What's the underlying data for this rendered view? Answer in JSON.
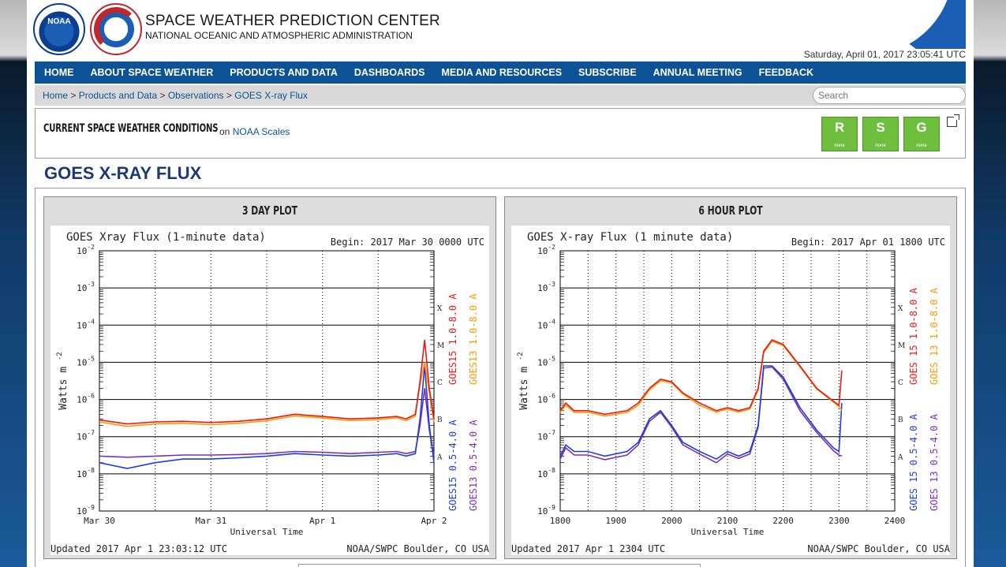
{
  "header": {
    "noaa_logo_text": "NOAA",
    "title": "SPACE WEATHER PREDICTION CENTER",
    "subtitle": "NATIONAL OCEANIC AND ATMOSPHERIC ADMINISTRATION",
    "datetime": "Saturday, April 01, 2017 23:05:41 UTC"
  },
  "nav": {
    "items": [
      "HOME",
      "ABOUT SPACE WEATHER",
      "PRODUCTS AND DATA",
      "DASHBOARDS",
      "MEDIA AND RESOURCES",
      "SUBSCRIBE",
      "ANNUAL MEETING",
      "FEEDBACK"
    ]
  },
  "breadcrumb": {
    "items": [
      "Home",
      "Products and Data",
      "Observations",
      "GOES X-ray Flux"
    ],
    "separator": ">"
  },
  "search": {
    "placeholder": "Search"
  },
  "conditions": {
    "title": "CURRENT SPACE WEATHER CONDITIONS",
    "on_text": "on",
    "link": "NOAA Scales",
    "scales": [
      {
        "letter": "R",
        "status": "none",
        "color": "#6fbf3f"
      },
      {
        "letter": "S",
        "status": "none",
        "color": "#6fbf3f"
      },
      {
        "letter": "G",
        "status": "none",
        "color": "#6fbf3f"
      }
    ]
  },
  "page_title": "GOES X-RAY FLUX",
  "chart_data": [
    {
      "panel_title": "3 DAY PLOT",
      "type": "line",
      "title": "GOES Xray Flux (1-minute data)",
      "begin": "Begin:  2017 Mar 30 0000 UTC",
      "xlabel": "Universal Time",
      "ylabel": "Watts m",
      "ylabel_sup": "-2",
      "yscale": "log",
      "ylim": [
        1e-09,
        0.01
      ],
      "y_ticks": [
        "10",
        "10",
        "10",
        "10",
        "10",
        "10",
        "10",
        "10"
      ],
      "y_tick_exps": [
        "-2",
        "-3",
        "-4",
        "-5",
        "-6",
        "-7",
        "-8",
        "-9"
      ],
      "x_ticks": [
        "Mar 30",
        "Mar 31",
        "Apr 1",
        "Apr 2"
      ],
      "flare_classes": [
        "X",
        "M",
        "C",
        "B",
        "A"
      ],
      "legend": [
        "GOES15 1.0-8.0 A",
        "GOES13 1.0-8.0 A",
        "GOES15 0.5-4.0 A",
        "GOES13 0.5-4.0 A"
      ],
      "colors": [
        "#e41a1c",
        "#ff9900",
        "#1f3ddb",
        "#7b2fb5"
      ],
      "footer_left": "Updated 2017 Apr  1 23:03:12 UTC",
      "footer_right": "NOAA/SWPC Boulder, CO USA",
      "x": [
        0,
        6,
        12,
        18,
        24,
        30,
        36,
        42,
        48,
        54,
        60,
        64,
        66,
        68,
        69,
        70,
        71,
        72
      ],
      "series": [
        {
          "name": "GOES15 1.0-8.0 A",
          "values": [
            2.8e-07,
            2.2e-07,
            2.5e-07,
            2.6e-07,
            2.4e-07,
            2.6e-07,
            3e-07,
            4e-07,
            3.5e-07,
            3e-07,
            3.2e-07,
            3.5e-07,
            3e-07,
            4e-07,
            3e-06,
            4e-05,
            2e-06,
            3e-07
          ]
        },
        {
          "name": "GOES13 1.0-8.0 A",
          "values": [
            2.5e-07,
            1.9e-07,
            2.2e-07,
            2.3e-07,
            2.1e-07,
            2.3e-07,
            2.7e-07,
            3.6e-07,
            3.2e-07,
            2.7e-07,
            2.9e-07,
            3.2e-07,
            2.7e-07,
            3.6e-07,
            2.5e-06,
            1e-05,
            1.5e-06,
            2.5e-07
          ]
        },
        {
          "name": "GOES15 0.5-4.0 A",
          "values": [
            2e-08,
            1.4e-08,
            2e-08,
            2.5e-08,
            2.5e-08,
            2.7e-08,
            3e-08,
            3.5e-08,
            3.2e-08,
            3e-08,
            3.2e-08,
            3.5e-08,
            3e-08,
            3.5e-08,
            3e-07,
            8e-06,
            2e-07,
            2e-08
          ]
        },
        {
          "name": "GOES13 0.5-4.0 A",
          "values": [
            3e-08,
            2.8e-08,
            3e-08,
            3.2e-08,
            3.2e-08,
            3.3e-08,
            3.5e-08,
            4e-08,
            3.8e-08,
            3.5e-08,
            3.8e-08,
            4e-08,
            3.5e-08,
            4e-08,
            2e-07,
            2e-06,
            1.5e-07,
            3e-08
          ]
        }
      ]
    },
    {
      "panel_title": "6 HOUR PLOT",
      "type": "line",
      "title": "GOES X-ray Flux (1 minute data)",
      "begin": "Begin: 2017 Apr 01 1800 UTC",
      "xlabel": "Universal Time",
      "ylabel": "Watts m",
      "ylabel_sup": "-2",
      "yscale": "log",
      "ylim": [
        1e-09,
        0.01
      ],
      "y_ticks": [
        "10",
        "10",
        "10",
        "10",
        "10",
        "10",
        "10",
        "10"
      ],
      "y_tick_exps": [
        "-2",
        "-3",
        "-4",
        "-5",
        "-6",
        "-7",
        "-8",
        "-9"
      ],
      "x_ticks": [
        "1800",
        "1900",
        "2000",
        "2100",
        "2200",
        "2300",
        "2400"
      ],
      "flare_classes": [
        "X",
        "M",
        "C",
        "B",
        "A"
      ],
      "legend": [
        "GOES 15 1.0-8.0 A",
        "GOES 13 1.0-8.0 A",
        "GOES 15 0.5-4.0 A",
        "GOES 13 0.5-4.0 A"
      ],
      "colors": [
        "#e41a1c",
        "#ff9900",
        "#1f3ddb",
        "#7b2fb5"
      ],
      "footer_left": "Updated 2017 Apr  1 2304 UTC",
      "footer_right": "NOAA/SWPC Boulder, CO USA",
      "x": [
        0,
        0.1,
        0.25,
        0.5,
        0.8,
        1.2,
        1.4,
        1.6,
        1.8,
        2.0,
        2.2,
        2.5,
        2.8,
        3.0,
        3.2,
        3.4,
        3.55,
        3.65,
        3.8,
        4.0,
        4.3,
        4.6,
        4.9,
        5.0,
        5.05
      ],
      "series": [
        {
          "name": "GOES 15 1.0-8.0 A",
          "values": [
            5e-07,
            8e-07,
            5e-07,
            5e-07,
            4e-07,
            5e-07,
            8e-07,
            2e-06,
            3.5e-06,
            3e-06,
            1.5e-06,
            8e-07,
            5e-07,
            6e-07,
            5e-07,
            6e-07,
            2e-06,
            2e-05,
            4e-05,
            3e-05,
            8e-06,
            2e-06,
            9e-07,
            7e-07,
            6e-06
          ]
        },
        {
          "name": "GOES 13 1.0-8.0 A",
          "values": [
            4.5e-07,
            7e-07,
            4.5e-07,
            4.5e-07,
            3.6e-07,
            4.5e-07,
            7e-07,
            1.8e-06,
            3.2e-06,
            2.8e-06,
            1.4e-06,
            7e-07,
            4.6e-07,
            5.5e-07,
            4.6e-07,
            5.5e-07,
            1.8e-06,
            1.8e-05,
            3.7e-05,
            2.8e-05,
            7.5e-06,
            1.9e-06,
            8.5e-07,
            6.5e-07,
            5e-07
          ]
        },
        {
          "name": "GOES 15 0.5-4.0 A",
          "values": [
            3e-08,
            6e-08,
            4e-08,
            4e-08,
            3e-08,
            4e-08,
            7e-08,
            3e-07,
            5e-07,
            2e-07,
            7e-08,
            4e-08,
            2.5e-08,
            4e-08,
            3e-08,
            4e-08,
            2e-07,
            8e-06,
            8e-06,
            4e-06,
            6e-07,
            1.5e-07,
            5e-08,
            4e-08,
            8e-07
          ]
        },
        {
          "name": "GOES 13 0.5-4.0 A",
          "values": [
            2.5e-08,
            5e-08,
            3.2e-08,
            3.2e-08,
            2.4e-08,
            3.2e-08,
            6e-08,
            2.6e-07,
            4.5e-07,
            1.8e-07,
            6e-08,
            3.4e-08,
            2e-08,
            3.4e-08,
            2.6e-08,
            3.4e-08,
            1.8e-07,
            7e-06,
            7.5e-06,
            3.5e-06,
            5e-07,
            1.3e-07,
            4.2e-08,
            3.2e-08,
            3e-08
          ]
        }
      ]
    }
  ]
}
